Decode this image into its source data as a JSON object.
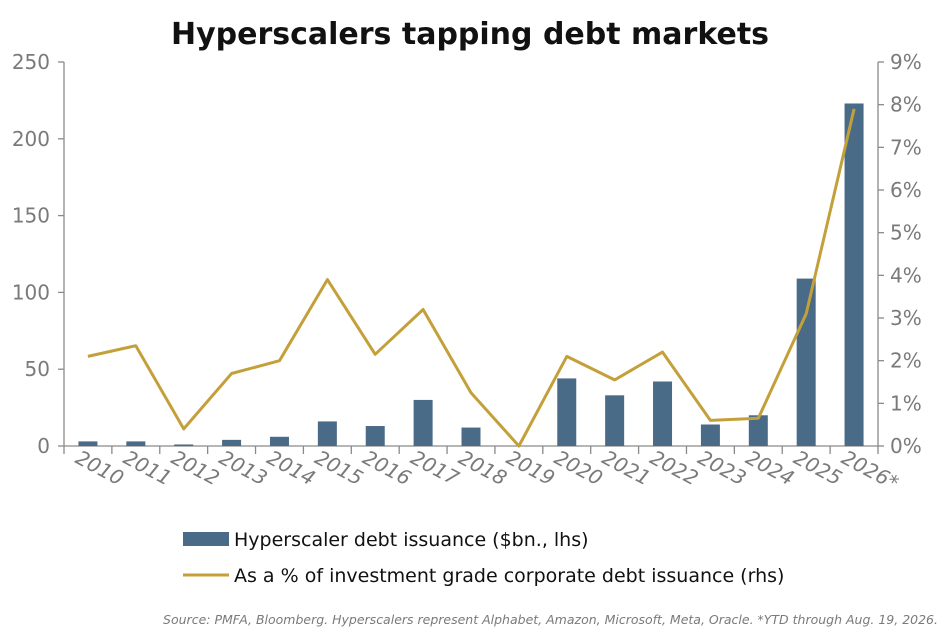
{
  "chart_data": {
    "type": "bar",
    "title": "Hyperscalers tapping debt markets",
    "categories": [
      "2010",
      "2011",
      "2012",
      "2013",
      "2014",
      "2015",
      "2016",
      "2017",
      "2018",
      "2019",
      "2020",
      "2021",
      "2022",
      "2023",
      "2024",
      "2025",
      "2026*"
    ],
    "series": [
      {
        "name": "Hyperscaler debt issuance ($bn., lhs)",
        "type": "bar",
        "axis": "left",
        "values": [
          3,
          3,
          1,
          4,
          6,
          16,
          13,
          30,
          12,
          0,
          44,
          33,
          42,
          14,
          20,
          109,
          223
        ]
      },
      {
        "name": "As a % of investment grade corporate debt issuance (rhs)",
        "type": "line",
        "axis": "right",
        "values": [
          2.1,
          2.35,
          0.4,
          1.7,
          2.0,
          3.9,
          2.15,
          3.2,
          1.25,
          0.0,
          2.1,
          1.55,
          2.2,
          0.6,
          0.65,
          3.1,
          7.9
        ]
      }
    ],
    "y_left": {
      "min": 0,
      "max": 250,
      "ticks": [
        0,
        50,
        100,
        150,
        200,
        250
      ]
    },
    "y_right": {
      "min": 0,
      "max": 9,
      "ticks": [
        "0%",
        "1%",
        "2%",
        "3%",
        "4%",
        "5%",
        "6%",
        "7%",
        "8%",
        "9%"
      ]
    },
    "colors": {
      "bar": "#4a6b87",
      "line": "#c4a03a",
      "axis": "#8a8a8a"
    },
    "grid": false,
    "legend_position": "bottom"
  },
  "source_note": "Source: PMFA, Bloomberg. Hyperscalers represent Alphabet, Amazon, Microsoft, Meta, Oracle. *YTD through Aug. 19, 2026."
}
